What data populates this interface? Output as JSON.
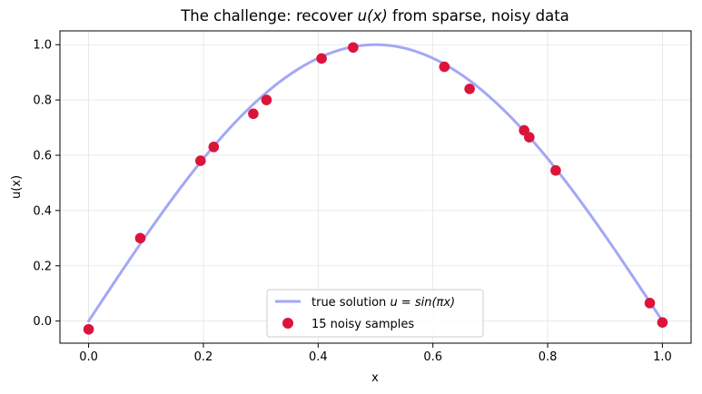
{
  "chart_data": {
    "type": "scatter",
    "title": {
      "prefix": "The challenge: recover ",
      "math": "u(x)",
      "suffix": " from sparse, noisy data"
    },
    "xlabel": "x",
    "ylabel": "u(x)",
    "xlim": [
      -0.05,
      1.05
    ],
    "ylim": [
      -0.08,
      1.05
    ],
    "xticks": [
      0.0,
      0.2,
      0.4,
      0.6,
      0.8,
      1.0
    ],
    "xtick_labels": [
      "0.0",
      "0.2",
      "0.4",
      "0.6",
      "0.8",
      "1.0"
    ],
    "yticks": [
      0.0,
      0.2,
      0.4,
      0.6,
      0.8,
      1.0
    ],
    "ytick_labels": [
      "0.0",
      "0.2",
      "0.4",
      "0.6",
      "0.8",
      "1.0"
    ],
    "grid": true,
    "legend_position": "lower center",
    "series": [
      {
        "name": "true solution u = sin(πx)",
        "kind": "line",
        "function": "sin(pi*x)",
        "x_range": [
          0,
          1
        ],
        "color": "#a4a7f6"
      },
      {
        "name": "15 noisy samples",
        "kind": "scatter",
        "color": "#dc143c",
        "points": [
          [
            0.0,
            -0.03
          ],
          [
            0.09,
            0.3
          ],
          [
            0.195,
            0.58
          ],
          [
            0.218,
            0.63
          ],
          [
            0.287,
            0.75
          ],
          [
            0.31,
            0.8
          ],
          [
            0.406,
            0.95
          ],
          [
            0.461,
            0.99
          ],
          [
            0.62,
            0.92
          ],
          [
            0.664,
            0.84
          ],
          [
            0.759,
            0.69
          ],
          [
            0.768,
            0.665
          ],
          [
            0.814,
            0.545
          ],
          [
            0.978,
            0.065
          ],
          [
            1.0,
            -0.005
          ]
        ]
      }
    ],
    "legend": [
      {
        "label_prefix": "true solution ",
        "label_math": "u = sin(πx)"
      },
      {
        "label_prefix": "15 noisy samples",
        "label_math": ""
      }
    ]
  }
}
